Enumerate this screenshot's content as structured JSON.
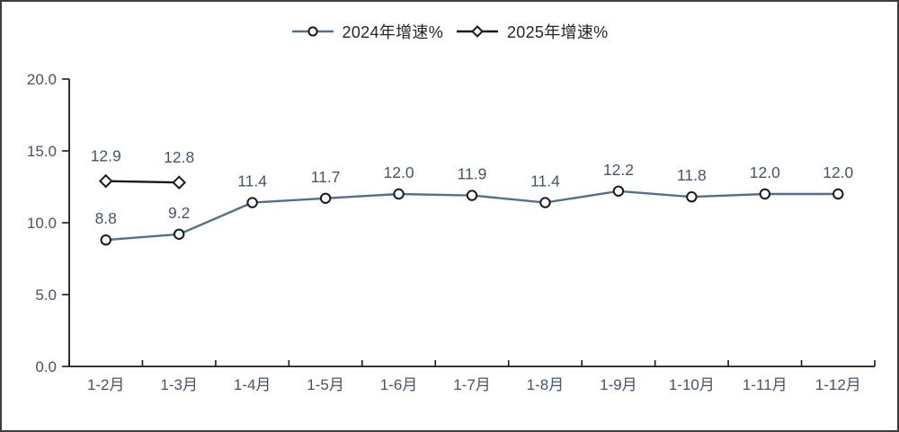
{
  "chart": {
    "background": "#ffffff",
    "border_color": "#3d3d3d"
  },
  "chart_data": {
    "type": "line",
    "categories": [
      "1-2月",
      "1-3月",
      "1-4月",
      "1-5月",
      "1-6月",
      "1-7月",
      "1-8月",
      "1-9月",
      "1-10月",
      "1-11月",
      "1-12月"
    ],
    "series": [
      {
        "name": "2024年增速%",
        "marker": "circle",
        "color": "#51708f",
        "values": [
          8.8,
          9.2,
          11.4,
          11.7,
          12.0,
          11.9,
          11.4,
          12.2,
          11.8,
          12.0,
          12.0
        ]
      },
      {
        "name": "2025年增速%",
        "marker": "diamond",
        "color": "#1a1a1a",
        "values": [
          12.9,
          12.8
        ]
      }
    ],
    "title": "",
    "xlabel": "",
    "ylabel": "",
    "ylim": [
      0,
      20
    ],
    "yticks": [
      0,
      5,
      10,
      15,
      20
    ],
    "ytick_labels": [
      "0.0",
      "5.0",
      "10.0",
      "15.0",
      "20.0"
    ],
    "grid": false,
    "data_labels": true,
    "legend_position": "top-center",
    "label_color": "#44546a",
    "axis_color": "#1a1a1a",
    "marker_fill": "#ffffff",
    "marker_stroke": "#1a1a1a"
  }
}
